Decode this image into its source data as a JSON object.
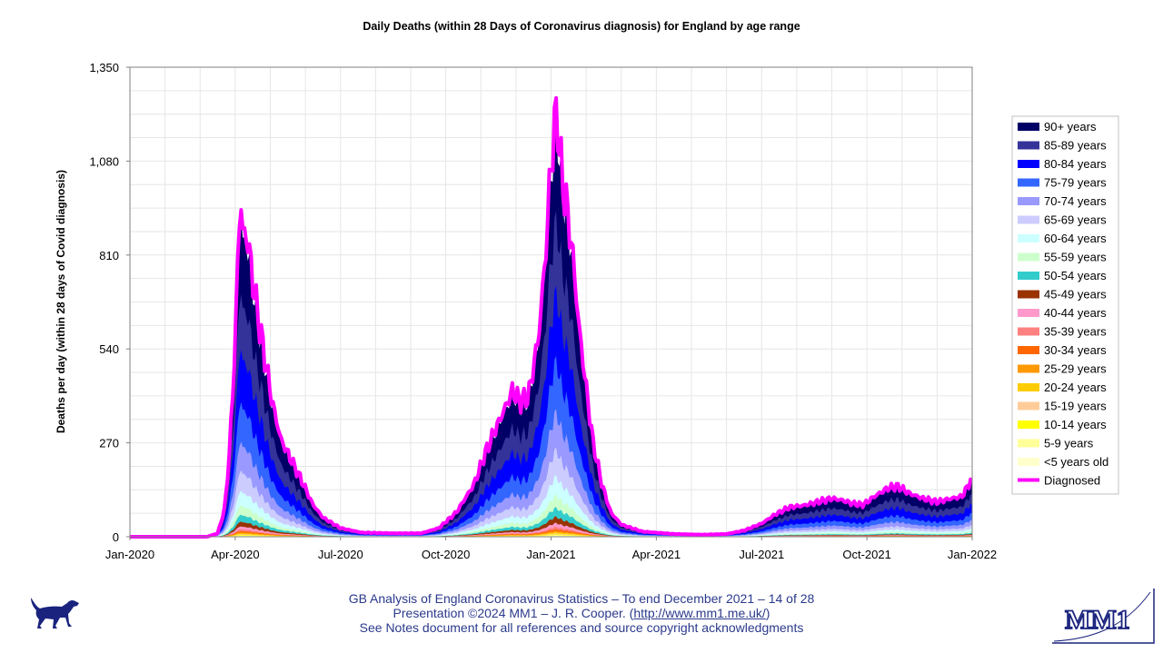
{
  "chart_data": {
    "type": "area",
    "title": "Daily Deaths (within 28 Days of Coronavirus diagnosis) for England by age range",
    "xlabel": "",
    "ylabel": "Deaths per day (within 28 days of Covid diagnosis)",
    "ylim": [
      0,
      1350
    ],
    "yticks": [
      0,
      270,
      540,
      810,
      1080,
      1350
    ],
    "ytick_labels": [
      "0",
      "270",
      "540",
      "810",
      "1,080",
      "1,350"
    ],
    "xlim_months": [
      0,
      24
    ],
    "xticks": [
      {
        "m": 0,
        "label": "Jan-2020"
      },
      {
        "m": 3,
        "label": "Apr-2020"
      },
      {
        "m": 6,
        "label": "Jul-2020"
      },
      {
        "m": 9,
        "label": "Oct-2020"
      },
      {
        "m": 12,
        "label": "Jan-2021"
      },
      {
        "m": 15,
        "label": "Apr-2021"
      },
      {
        "m": 18,
        "label": "Jul-2021"
      },
      {
        "m": 21,
        "label": "Oct-2021"
      },
      {
        "m": 24,
        "label": "Jan-2022"
      }
    ],
    "grid": true,
    "legend_position": "right",
    "series": [
      {
        "name": "90+ years",
        "color": "#000066",
        "share": 0.235
      },
      {
        "name": "85-89 years",
        "color": "#333399",
        "share": 0.175
      },
      {
        "name": "80-84 years",
        "color": "#0000ff",
        "share": 0.165
      },
      {
        "name": "75-79 years",
        "color": "#3366ff",
        "share": 0.125
      },
      {
        "name": "70-74 years",
        "color": "#9999ff",
        "share": 0.09
      },
      {
        "name": "65-69 years",
        "color": "#ccccff",
        "share": 0.065
      },
      {
        "name": "60-64 years",
        "color": "#ccffff",
        "share": 0.045
      },
      {
        "name": "55-59 years",
        "color": "#ccffcc",
        "share": 0.03
      },
      {
        "name": "50-54 years",
        "color": "#33cccc",
        "share": 0.022
      },
      {
        "name": "45-49 years",
        "color": "#993300",
        "share": 0.015
      },
      {
        "name": "40-44 years",
        "color": "#ff99cc",
        "share": 0.009
      },
      {
        "name": "35-39 years",
        "color": "#ff8080",
        "share": 0.006
      },
      {
        "name": "30-34 years",
        "color": "#ff6600",
        "share": 0.004
      },
      {
        "name": "25-29 years",
        "color": "#ff9900",
        "share": 0.003
      },
      {
        "name": "20-24 years",
        "color": "#ffcc00",
        "share": 0.003
      },
      {
        "name": "15-19 years",
        "color": "#ffcc99",
        "share": 0.002
      },
      {
        "name": "10-14 years",
        "color": "#ffff00",
        "share": 0.002
      },
      {
        "name": "5-9 years",
        "color": "#ffff99",
        "share": 0.002
      },
      {
        "name": "<5 years old",
        "color": "#ffffcc",
        "share": 0.002
      }
    ],
    "diagnosed": {
      "name": "Diagnosed",
      "color": "#ff00ff",
      "points": [
        [
          0,
          0
        ],
        [
          2.2,
          0
        ],
        [
          2.5,
          10
        ],
        [
          2.7,
          80
        ],
        [
          2.85,
          260
        ],
        [
          3.0,
          560
        ],
        [
          3.08,
          820
        ],
        [
          3.15,
          980
        ],
        [
          3.22,
          870
        ],
        [
          3.35,
          860
        ],
        [
          3.55,
          700
        ],
        [
          3.8,
          540
        ],
        [
          4.05,
          390
        ],
        [
          4.3,
          280
        ],
        [
          4.6,
          220
        ],
        [
          4.9,
          160
        ],
        [
          5.2,
          95
        ],
        [
          5.5,
          55
        ],
        [
          6.0,
          25
        ],
        [
          6.6,
          12
        ],
        [
          7.5,
          10
        ],
        [
          8.3,
          10
        ],
        [
          8.8,
          25
        ],
        [
          9.3,
          70
        ],
        [
          9.8,
          150
        ],
        [
          10.2,
          260
        ],
        [
          10.6,
          350
        ],
        [
          10.9,
          420
        ],
        [
          11.1,
          390
        ],
        [
          11.35,
          400
        ],
        [
          11.65,
          580
        ],
        [
          11.85,
          820
        ],
        [
          12.0,
          1080
        ],
        [
          12.1,
          1170
        ],
        [
          12.18,
          1240
        ],
        [
          12.25,
          1080
        ],
        [
          12.4,
          980
        ],
        [
          12.6,
          830
        ],
        [
          12.8,
          600
        ],
        [
          13.0,
          430
        ],
        [
          13.2,
          270
        ],
        [
          13.45,
          150
        ],
        [
          13.7,
          70
        ],
        [
          14.0,
          35
        ],
        [
          14.6,
          15
        ],
        [
          15.5,
          8
        ],
        [
          16.3,
          6
        ],
        [
          17.0,
          8
        ],
        [
          17.5,
          18
        ],
        [
          18.0,
          38
        ],
        [
          18.4,
          65
        ],
        [
          18.8,
          85
        ],
        [
          19.2,
          90
        ],
        [
          19.6,
          100
        ],
        [
          20.0,
          110
        ],
        [
          20.3,
          105
        ],
        [
          20.6,
          95
        ],
        [
          20.9,
          92
        ],
        [
          21.2,
          115
        ],
        [
          21.6,
          140
        ],
        [
          21.9,
          145
        ],
        [
          22.2,
          125
        ],
        [
          22.6,
          110
        ],
        [
          23.0,
          100
        ],
        [
          23.4,
          110
        ],
        [
          23.7,
          115
        ],
        [
          23.88,
          145
        ],
        [
          23.95,
          165
        ],
        [
          24,
          150
        ]
      ]
    }
  },
  "footer": {
    "line1": "GB Analysis of England Coronavirus Statistics – To end December 2021 – 14 of 28",
    "line2_prefix": "Presentation ©2024 MM1 – J. R. Cooper. (",
    "line2_link": "http://www.mm1.me.uk/",
    "line2_suffix": ")",
    "line3": "See Notes document for all references and source copyright acknowledgments"
  },
  "logo": {
    "text": "MM1"
  },
  "colors": {
    "plot_border": "#808080",
    "grid": "#e0e0e0",
    "footer_text": "#2b3a8c"
  }
}
